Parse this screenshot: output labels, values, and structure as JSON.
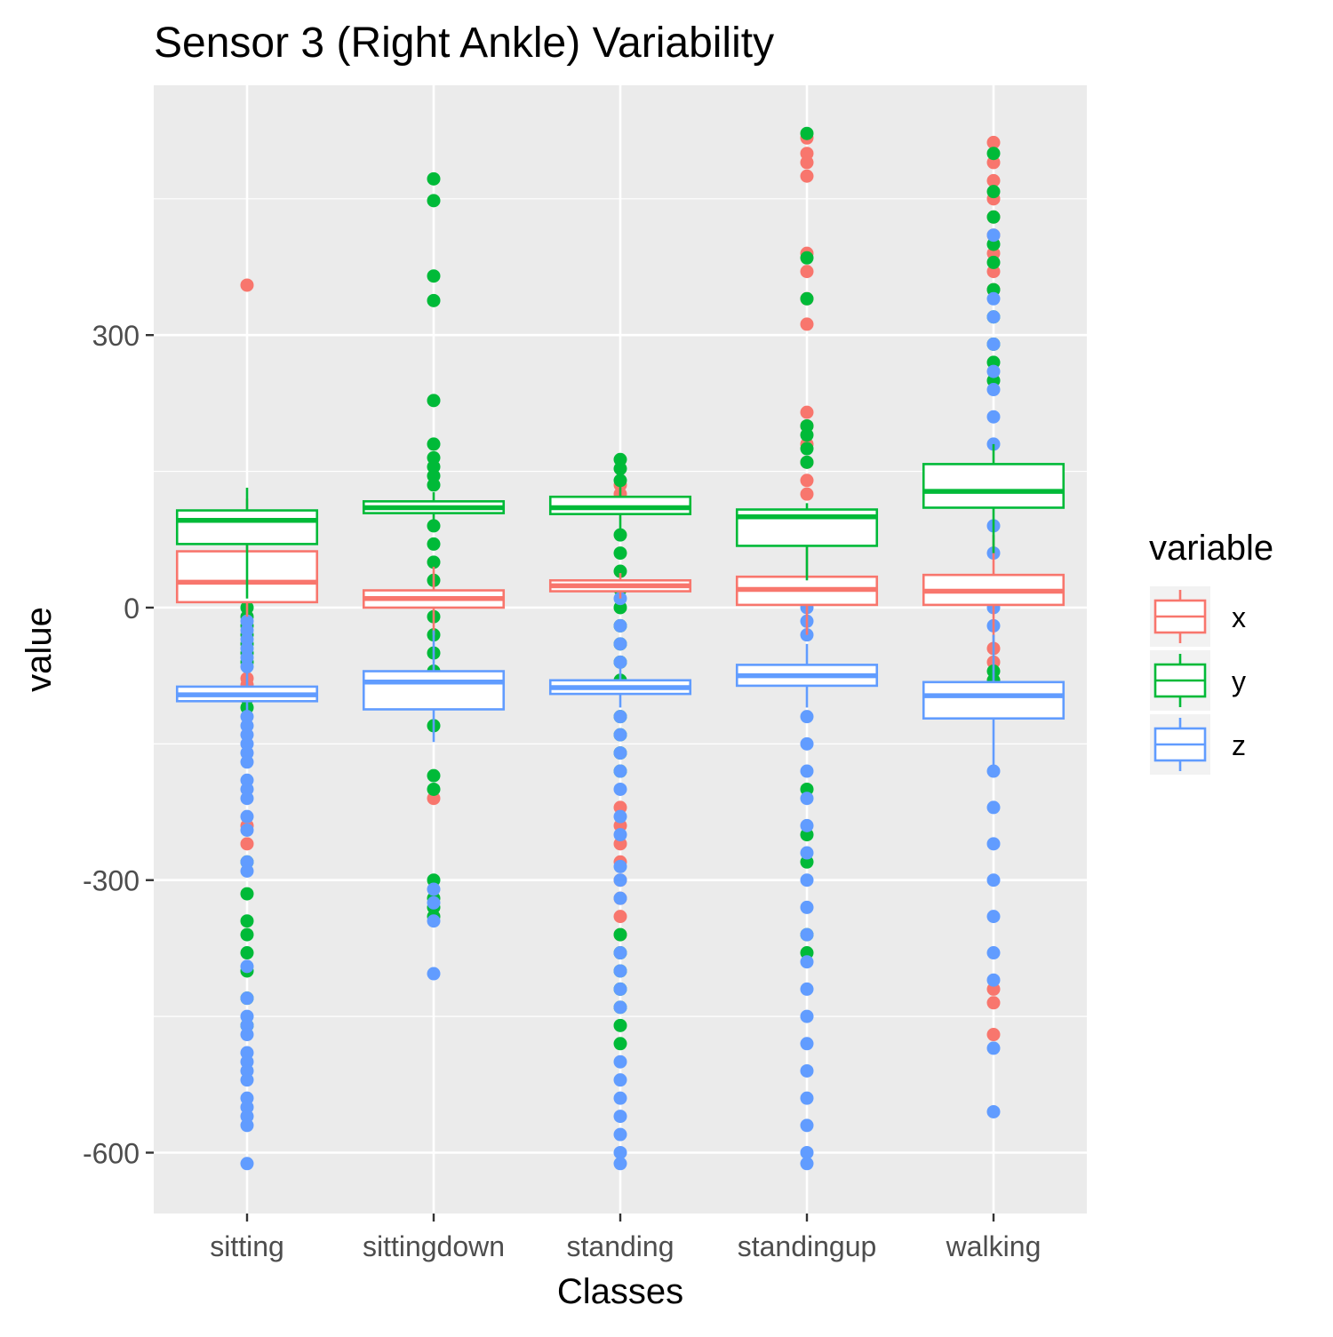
{
  "chart_data": {
    "type": "boxplot",
    "title": "Sensor 3 (Right Ankle) Variability",
    "xlabel": "Classes",
    "ylabel": "value",
    "categories": [
      "sitting",
      "sittingdown",
      "standing",
      "standingup",
      "walking"
    ],
    "ylim": [
      -667,
      575
    ],
    "yticks": [
      -600,
      -300,
      0,
      300
    ],
    "grid": true,
    "legend": {
      "title": "variable",
      "placement": "right",
      "entries": [
        "x",
        "y",
        "z"
      ]
    },
    "series": [
      {
        "name": "x",
        "color": "#F8766D",
        "boxes": [
          {
            "category": "sitting",
            "q1": 6,
            "median": 28,
            "q3": 62,
            "whisker_low": -10,
            "whisker_high": 120
          },
          {
            "category": "sittingdown",
            "q1": 0,
            "median": 10,
            "q3": 19,
            "whisker_low": -30,
            "whisker_high": 45
          },
          {
            "category": "standing",
            "q1": 18,
            "median": 24,
            "q3": 30,
            "whisker_low": 10,
            "whisker_high": 38
          },
          {
            "category": "standingup",
            "q1": 3,
            "median": 20,
            "q3": 34,
            "whisker_low": -30,
            "whisker_high": 70
          },
          {
            "category": "walking",
            "q1": 3,
            "median": 18,
            "q3": 36,
            "whisker_low": -45,
            "whisker_high": 80
          }
        ]
      },
      {
        "name": "y",
        "color": "#00BA38",
        "boxes": [
          {
            "category": "sitting",
            "q1": 70,
            "median": 96,
            "q3": 107,
            "whisker_low": 10,
            "whisker_high": 132
          },
          {
            "category": "sittingdown",
            "q1": 104,
            "median": 110,
            "q3": 117,
            "whisker_low": 95,
            "whisker_high": 127
          },
          {
            "category": "standing",
            "q1": 103,
            "median": 110,
            "q3": 122,
            "whisker_low": 85,
            "whisker_high": 135
          },
          {
            "category": "standingup",
            "q1": 68,
            "median": 100,
            "q3": 108,
            "whisker_low": 30,
            "whisker_high": 115
          },
          {
            "category": "walking",
            "q1": 110,
            "median": 128,
            "q3": 158,
            "whisker_low": 60,
            "whisker_high": 180
          }
        ]
      },
      {
        "name": "z",
        "color": "#619CFF",
        "boxes": [
          {
            "category": "sitting",
            "q1": -103,
            "median": -96,
            "q3": -87,
            "whisker_low": -118,
            "whisker_high": -70
          },
          {
            "category": "sittingdown",
            "q1": -112,
            "median": -82,
            "q3": -70,
            "whisker_low": -148,
            "whisker_high": -25
          },
          {
            "category": "standing",
            "q1": -95,
            "median": -88,
            "q3": -80,
            "whisker_low": -110,
            "whisker_high": -65
          },
          {
            "category": "standingup",
            "q1": -86,
            "median": -75,
            "q3": -63,
            "whisker_low": -110,
            "whisker_high": -40
          },
          {
            "category": "walking",
            "q1": -122,
            "median": -97,
            "q3": -82,
            "whisker_low": -175,
            "whisker_high": -30
          }
        ]
      }
    ],
    "outliers": [
      {
        "series": "x",
        "category": "sitting",
        "values": [
          355,
          -78,
          -85,
          -100,
          -260,
          -240
        ]
      },
      {
        "series": "y",
        "category": "sitting",
        "values": [
          10,
          0,
          -10,
          -20,
          -30,
          -40,
          -50,
          -60,
          -100,
          -110,
          -280,
          -315,
          -345,
          -360,
          -380,
          -400,
          -430,
          -460
        ]
      },
      {
        "series": "z",
        "category": "sitting",
        "values": [
          -15,
          -25,
          -35,
          -45,
          -55,
          -65,
          -120,
          -130,
          -140,
          -150,
          -160,
          -170,
          -190,
          -200,
          -210,
          -230,
          -245,
          -280,
          -290,
          -395,
          -430,
          -450,
          -460,
          -470,
          -490,
          -500,
          -510,
          -520,
          -540,
          -550,
          -560,
          -570,
          -612
        ]
      },
      {
        "series": "x",
        "category": "sittingdown",
        "values": [
          -210
        ]
      },
      {
        "series": "y",
        "category": "sittingdown",
        "values": [
          472,
          448,
          365,
          338,
          228,
          180,
          165,
          155,
          145,
          135,
          90,
          70,
          50,
          30,
          10,
          -10,
          -30,
          -50,
          -70,
          -130,
          -185,
          -200,
          -300,
          -320,
          -330,
          -340
        ]
      },
      {
        "series": "z",
        "category": "sittingdown",
        "values": [
          -310,
          -325,
          -345,
          -403
        ]
      },
      {
        "series": "x",
        "category": "standing",
        "values": [
          135,
          125,
          -220,
          -240,
          -260,
          -280,
          -300,
          -320,
          -340,
          -360
        ]
      },
      {
        "series": "y",
        "category": "standing",
        "values": [
          163,
          153,
          140,
          80,
          60,
          40,
          20,
          0,
          -20,
          -40,
          -60,
          -80,
          -120,
          -140,
          -160,
          -180,
          -360,
          -380,
          -400,
          -420,
          -440,
          -460,
          -480
        ]
      },
      {
        "series": "z",
        "category": "standing",
        "values": [
          10,
          -20,
          -40,
          -60,
          -120,
          -140,
          -160,
          -180,
          -200,
          -230,
          -250,
          -285,
          -300,
          -320,
          -380,
          -400,
          -420,
          -440,
          -500,
          -520,
          -540,
          -560,
          -580,
          -600,
          -612
        ]
      },
      {
        "series": "x",
        "category": "standingup",
        "values": [
          517,
          500,
          490,
          475,
          390,
          370,
          340,
          312,
          215,
          200,
          180,
          160,
          140,
          125
        ]
      },
      {
        "series": "y",
        "category": "standingup",
        "values": [
          522,
          385,
          340,
          200,
          190,
          175,
          160,
          -200,
          -250,
          -280,
          -360,
          -380
        ]
      },
      {
        "series": "z",
        "category": "standingup",
        "values": [
          15,
          0,
          -15,
          -30,
          -120,
          -150,
          -180,
          -210,
          -240,
          -270,
          -300,
          -330,
          -360,
          -390,
          -420,
          -450,
          -480,
          -510,
          -540,
          -570,
          -600,
          -612
        ]
      },
      {
        "series": "x",
        "category": "walking",
        "values": [
          512,
          490,
          470,
          450,
          430,
          410,
          390,
          370,
          350,
          -45,
          -60,
          -80,
          -420,
          -435,
          -470
        ]
      },
      {
        "series": "y",
        "category": "walking",
        "values": [
          500,
          458,
          430,
          400,
          380,
          350,
          320,
          290,
          270,
          250,
          -70,
          -80,
          -100
        ]
      },
      {
        "series": "z",
        "category": "walking",
        "values": [
          410,
          340,
          320,
          290,
          260,
          240,
          210,
          180,
          150,
          120,
          90,
          60,
          30,
          0,
          -20,
          -180,
          -220,
          -260,
          -300,
          -340,
          -380,
          -410,
          -485,
          -555
        ]
      }
    ]
  }
}
